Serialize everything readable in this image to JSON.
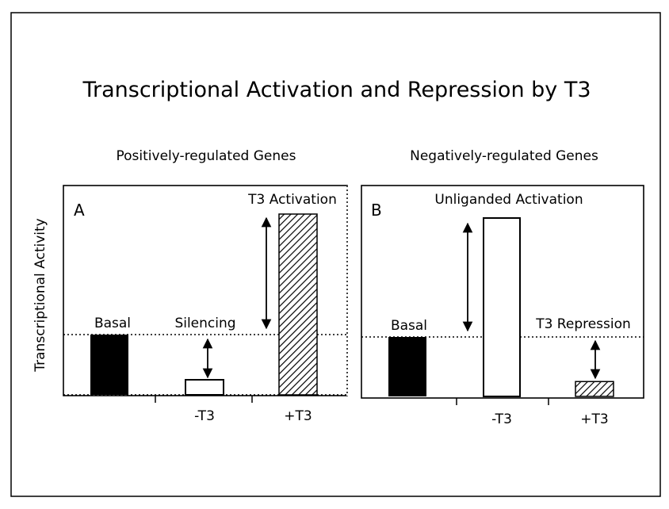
{
  "title": "Transcriptional Activation and Repression by T3",
  "y_axis_label": "Transcriptional Activity",
  "panel_a": {
    "heading": "Positively-regulated Genes",
    "letter": "A",
    "labels": {
      "basal": "Basal",
      "silencing": "Silencing",
      "activation": "T3 Activation"
    },
    "x_labels": {
      "minus": "-T3",
      "plus": "+T3"
    },
    "levels": {
      "basal": 1.0,
      "minus_t3": 0.25,
      "plus_t3": 3.0
    }
  },
  "panel_b": {
    "heading": "Negatively-regulated Genes",
    "letter": "B",
    "labels": {
      "basal": "Basal",
      "activation": "Unliganded Activation",
      "repression": "T3 Repression"
    },
    "x_labels": {
      "minus": "-T3",
      "plus": "+T3"
    },
    "levels": {
      "basal": 1.0,
      "minus_t3": 3.0,
      "plus_t3": 0.25
    }
  },
  "colors": {
    "basal_fill": "#000000",
    "minus_fill": "#ffffff",
    "plus_hatch": "#000000"
  }
}
